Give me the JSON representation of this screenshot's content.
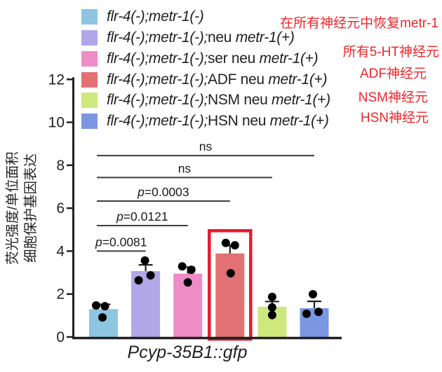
{
  "figure": {
    "background": "#ffffff"
  },
  "legend": {
    "items": [
      {
        "color": "#8ec5e2",
        "segments": [
          {
            "text": "flr-4(-);metr-1(-)",
            "italic": true
          }
        ]
      },
      {
        "color": "#b1a7e7",
        "segments": [
          {
            "text": "flr-4(-);metr-1(-);",
            "italic": true
          },
          {
            "text": "neu ",
            "italic": false
          },
          {
            "text": "metr-1(+)",
            "italic": true
          }
        ]
      },
      {
        "color": "#ee8cc7",
        "segments": [
          {
            "text": "flr-4(-);metr-1(-);",
            "italic": true
          },
          {
            "text": "ser neu ",
            "italic": false
          },
          {
            "text": "metr-1(+)",
            "italic": true
          }
        ]
      },
      {
        "color": "#e17173",
        "segments": [
          {
            "text": "flr-4(-);metr-1(-);",
            "italic": true
          },
          {
            "text": "ADF neu ",
            "italic": false
          },
          {
            "text": "metr-1(+)",
            "italic": true
          }
        ]
      },
      {
        "color": "#cde97d",
        "segments": [
          {
            "text": "flr-4(-);metr-1(-);",
            "italic": true
          },
          {
            "text": "NSM neu ",
            "italic": false
          },
          {
            "text": "metr-1(+)",
            "italic": true
          }
        ]
      },
      {
        "color": "#7b97e2",
        "segments": [
          {
            "text": "flr-4(-);metr-1(-);",
            "italic": true
          },
          {
            "text": "HSN neu ",
            "italic": false
          },
          {
            "text": "metr-1(+)",
            "italic": true
          }
        ]
      }
    ]
  },
  "annotations": {
    "color": "#ee2629",
    "items": [
      {
        "text": "在所有神经元中恢复metr-1"
      },
      {
        "text": "所有5-HT神经元"
      },
      {
        "text": "ADF神经元"
      },
      {
        "text": "NSM神经元"
      },
      {
        "text": "HSN神经元"
      }
    ]
  },
  "chart_data": {
    "type": "bar",
    "title": "",
    "xlabel": "Pcyp-35B1::gfp",
    "ylabel_lines": [
      "荧光强度/单位面积",
      "细胞保护基因表达"
    ],
    "ylim": [
      0,
      12
    ],
    "yticks": [
      0,
      2,
      4,
      6,
      8,
      10,
      12
    ],
    "grid": false,
    "legend_position": "top-left",
    "categories": [
      "flr-4(-);metr-1(-)",
      "flr-4(-);metr-1(-);neu metr-1(+)",
      "flr-4(-);metr-1(-);ser neu metr-1(+)",
      "flr-4(-);metr-1(-);ADF neu metr-1(+)",
      "flr-4(-);metr-1(-);NSM neu metr-1(+)",
      "flr-4(-);metr-1(-);HSN neu metr-1(+)"
    ],
    "values": [
      1.3,
      3.07,
      2.95,
      3.89,
      1.41,
      1.34
    ],
    "error_top": [
      1.52,
      3.36,
      3.25,
      4.27,
      1.65,
      1.66
    ],
    "bar_colors": [
      "#8ec5e2",
      "#b1a7e7",
      "#ee8cc7",
      "#e17173",
      "#cde97d",
      "#7b97e2"
    ],
    "points": [
      [
        {
          "dx": -10.5,
          "v": 1.47
        },
        {
          "dx": 2,
          "v": 1.43
        },
        {
          "dx": -1.5,
          "v": 0.91
        }
      ],
      [
        {
          "dx": -1,
          "v": 3.56
        },
        {
          "dx": -10,
          "v": 2.64
        },
        {
          "dx": 7,
          "v": 2.87
        }
      ],
      [
        {
          "dx": -8,
          "v": 3.29
        },
        {
          "dx": 5,
          "v": 3.13
        },
        {
          "dx": 0,
          "v": 2.54
        }
      ],
      [
        {
          "dx": -6,
          "v": 4.38
        },
        {
          "dx": 7,
          "v": 4.27
        },
        {
          "dx": 1,
          "v": 2.97
        }
      ],
      [
        {
          "dx": 0,
          "v": 1.87
        },
        {
          "dx": 0,
          "v": 1.38
        },
        {
          "dx": 0,
          "v": 1.02
        }
      ],
      [
        {
          "dx": -2,
          "v": 1.99
        },
        {
          "dx": -11,
          "v": 1.08
        },
        {
          "dx": 6,
          "v": 1.17
        }
      ]
    ],
    "comparisons": [
      {
        "label": "ns",
        "from": 0,
        "to": 5,
        "y": 8.45
      },
      {
        "label": "ns",
        "from": 0,
        "to": 4,
        "y": 7.43
      },
      {
        "label": "p=0.0003",
        "from": 0,
        "to": 3,
        "y": 6.33
      },
      {
        "label": "p=0.0121",
        "from": 0,
        "to": 2,
        "y": 5.19
      },
      {
        "label": "p=0.0081",
        "from": 0,
        "to": 1,
        "y": 4.0
      }
    ],
    "highlight": {
      "bar": 3,
      "color": "#e8192c"
    },
    "axis_color": "#231f20",
    "point_color": "#000000",
    "comparison_line_color": "#3d3d3d"
  }
}
